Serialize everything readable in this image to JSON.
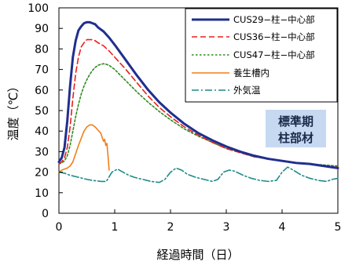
{
  "chart_data": {
    "type": "line",
    "xlabel": "経過時間（日）",
    "ylabel": "温度（℃）",
    "xlim": [
      0,
      5
    ],
    "ylim": [
      0,
      100
    ],
    "xticks": [
      0,
      1,
      2,
      3,
      4,
      5
    ],
    "yticks": [
      0,
      10,
      20,
      30,
      40,
      50,
      60,
      70,
      80,
      90,
      100
    ],
    "grid": false,
    "legend_position": "top-right",
    "annotation": [
      "標準期",
      "柱部材"
    ],
    "series": [
      {
        "name": "CUS29−柱−中心部",
        "color": "#1f2f8f",
        "dash": "solid",
        "x": [
          0,
          0.05,
          0.1,
          0.15,
          0.2,
          0.25,
          0.3,
          0.35,
          0.4,
          0.45,
          0.5,
          0.55,
          0.6,
          0.65,
          0.7,
          0.8,
          0.9,
          1.0,
          1.2,
          1.4,
          1.6,
          1.8,
          2.0,
          2.25,
          2.5,
          2.75,
          3.0,
          3.25,
          3.5,
          3.75,
          4.0,
          4.25,
          4.5,
          4.75,
          5.0
        ],
        "y": [
          25,
          27,
          32,
          45,
          62,
          76,
          84,
          89,
          91,
          92.5,
          93,
          93,
          92.5,
          92,
          90.5,
          88.5,
          85.5,
          82,
          74.5,
          67,
          60,
          54,
          49,
          43.5,
          39,
          35.5,
          32.5,
          30,
          28,
          26.5,
          25.5,
          24.5,
          24,
          23,
          22
        ]
      },
      {
        "name": "CUS36−柱−中心部",
        "color": "#e8201c",
        "dash": "dashed",
        "x": [
          0,
          0.05,
          0.1,
          0.15,
          0.2,
          0.25,
          0.3,
          0.35,
          0.4,
          0.45,
          0.5,
          0.55,
          0.6,
          0.65,
          0.7,
          0.8,
          0.9,
          1.0,
          1.2,
          1.4,
          1.6,
          1.8,
          2.0,
          2.25,
          2.5,
          2.75,
          3.0,
          3.25,
          3.5,
          3.75,
          4.0,
          4.25,
          4.5,
          4.75,
          5.0
        ],
        "y": [
          24,
          25,
          27,
          32,
          42,
          56,
          68,
          76,
          81,
          83,
          84.5,
          84.5,
          84.5,
          84,
          83,
          81.5,
          79,
          76,
          70,
          63.5,
          57,
          51.5,
          47,
          42,
          38,
          34.5,
          31.5,
          29.5,
          27.5,
          26.5,
          25.5,
          24.5,
          24,
          23,
          22.5
        ]
      },
      {
        "name": "CUS47−柱−中心部",
        "color": "#2e8b1f",
        "dash": "dotted",
        "x": [
          0,
          0.05,
          0.1,
          0.15,
          0.2,
          0.25,
          0.3,
          0.35,
          0.4,
          0.45,
          0.5,
          0.55,
          0.6,
          0.65,
          0.7,
          0.75,
          0.8,
          0.85,
          0.9,
          0.95,
          1.0,
          1.2,
          1.4,
          1.6,
          1.8,
          2.0,
          2.25,
          2.5,
          2.75,
          3.0,
          3.25,
          3.5,
          3.75,
          4.0,
          4.25,
          4.5,
          4.75,
          5.0
        ],
        "y": [
          24,
          24.5,
          25.5,
          28,
          33,
          40,
          47,
          53,
          58,
          62,
          65,
          67.5,
          69.5,
          71,
          72,
          72.5,
          72.8,
          72.5,
          72,
          71,
          70,
          64.5,
          59,
          54,
          49.5,
          45.5,
          41,
          37.5,
          34.5,
          31.5,
          29.5,
          27.5,
          26.5,
          25.5,
          24.5,
          24,
          23.5,
          23
        ]
      },
      {
        "name": "養生槽内",
        "color": "#f07f1a",
        "dash": "solid",
        "x": [
          0,
          0.05,
          0.1,
          0.15,
          0.2,
          0.25,
          0.3,
          0.35,
          0.4,
          0.45,
          0.5,
          0.55,
          0.6,
          0.65,
          0.7,
          0.75,
          0.8,
          0.82,
          0.84,
          0.86,
          0.88,
          0.9
        ],
        "y": [
          20,
          21,
          21.5,
          22,
          23,
          25,
          29,
          33,
          36.5,
          40,
          42,
          43,
          43,
          42,
          40.5,
          39,
          35,
          36,
          33,
          34,
          28,
          21
        ]
      },
      {
        "name": "外気温",
        "color": "#1f8a8a",
        "dash": "dashdot",
        "x": [
          0,
          0.1,
          0.2,
          0.35,
          0.5,
          0.6,
          0.75,
          0.85,
          0.95,
          1.05,
          1.15,
          1.25,
          1.35,
          1.5,
          1.65,
          1.8,
          1.9,
          2.0,
          2.1,
          2.2,
          2.3,
          2.45,
          2.6,
          2.75,
          2.85,
          2.95,
          3.05,
          3.15,
          3.3,
          3.45,
          3.6,
          3.75,
          3.9,
          4.0,
          4.1,
          4.2,
          4.35,
          4.5,
          4.65,
          4.8,
          4.9,
          5.0
        ],
        "y": [
          20,
          19.5,
          18.5,
          17.5,
          16.5,
          16,
          15.5,
          15.5,
          20,
          21.5,
          20,
          18.5,
          17.5,
          16.5,
          15.5,
          15,
          16.5,
          20,
          22,
          21,
          19,
          17.5,
          16.5,
          15.5,
          16.5,
          20,
          21,
          20.5,
          18.5,
          17,
          16,
          15.5,
          16,
          20,
          22.5,
          21,
          18.5,
          17,
          16,
          15.5,
          16.5,
          17
        ]
      }
    ]
  }
}
